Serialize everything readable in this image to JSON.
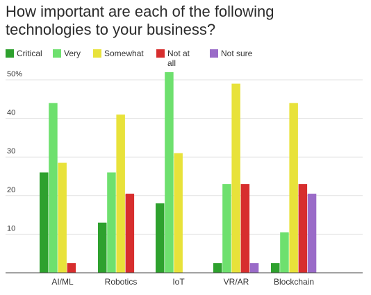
{
  "chart_data": {
    "type": "bar",
    "title": "How important are each of the following technologies to your business?",
    "categories": [
      "AI/ML",
      "Robotics",
      "IoT",
      "VR/AR",
      "Blockchain"
    ],
    "series": [
      {
        "name": "Critical",
        "color": "#2ea12e",
        "values": [
          26,
          13,
          18,
          2.5,
          2.5
        ]
      },
      {
        "name": "Very",
        "color": "#6ee06e",
        "values": [
          44,
          26,
          52,
          23,
          10.5
        ]
      },
      {
        "name": "Somewhat",
        "color": "#e8e23a",
        "values": [
          28.5,
          41,
          31,
          49,
          44
        ]
      },
      {
        "name": "Not at all",
        "color": "#d72e2e",
        "values": [
          2.5,
          20.5,
          0,
          23,
          23
        ]
      },
      {
        "name": "Not sure",
        "color": "#9a6bc8",
        "values": [
          0,
          0,
          0,
          2.5,
          20.5
        ]
      }
    ],
    "ylim": [
      0,
      50
    ],
    "yticks": [
      10,
      20,
      30,
      40,
      50
    ],
    "ytick_labels": [
      "10",
      "20",
      "30",
      "40",
      "50%"
    ],
    "xlabel": "",
    "ylabel": "",
    "grid": true,
    "legend_position": "top"
  }
}
